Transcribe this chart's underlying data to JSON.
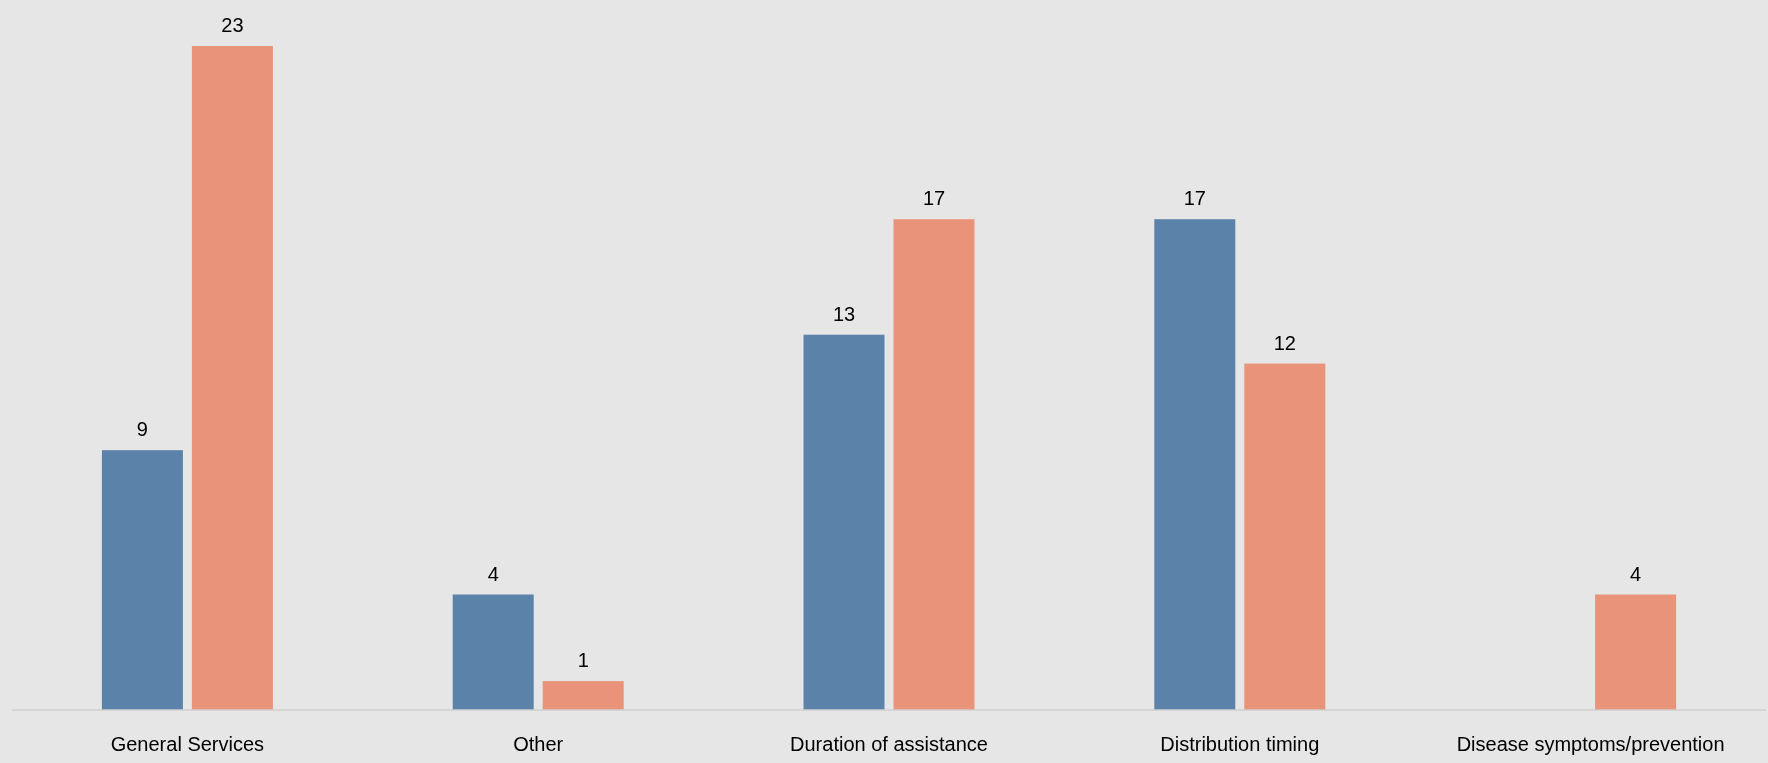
{
  "chart_data": {
    "type": "bar",
    "categories": [
      "General Services",
      "Other",
      "Duration of assistance",
      "Distribution timing",
      "Disease symptoms/prevention"
    ],
    "series": [
      {
        "color": "#5b83a9",
        "values": [
          9,
          4,
          13,
          17,
          null
        ]
      },
      {
        "color": "#e8937a",
        "values": [
          23,
          1,
          17,
          12,
          4
        ]
      }
    ],
    "data_labels": true
  }
}
